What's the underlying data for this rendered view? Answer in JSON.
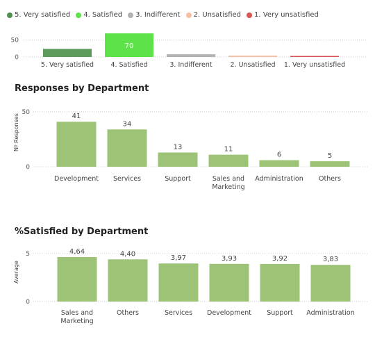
{
  "chart_data": [
    {
      "type": "bar",
      "title": "",
      "categories": [
        "5. Very satisfied",
        "4. Satisfied",
        "3. Indifferent",
        "2. Unsatisfied",
        "1. Very unsatisfied"
      ],
      "values": [
        24,
        70,
        8,
        4,
        2
      ],
      "colors": [
        "#5c9b5c",
        "#5de24a",
        "#b3b3b3",
        "#f4bfa4",
        "#d9534f"
      ],
      "data_labels": [
        "",
        "70",
        "",
        "",
        ""
      ],
      "yticks": [
        "50",
        "0"
      ],
      "ylim": [
        0,
        70
      ],
      "legend": {
        "position": "top-left",
        "items": [
          {
            "label": "5. Very satisfied",
            "color": "#4f8f4f"
          },
          {
            "label": "4. Satisfied",
            "color": "#5de24a"
          },
          {
            "label": "3. Indifferent",
            "color": "#b3b3b3"
          },
          {
            "label": "2. Unsatisfied",
            "color": "#f4bfa4"
          },
          {
            "label": "1. Very unsatisfied",
            "color": "#d9534f"
          }
        ]
      },
      "grid": true
    },
    {
      "type": "bar",
      "title": "Responses by Department",
      "ylabel": "Nº Responses",
      "categories": [
        [
          "Development"
        ],
        [
          "Services"
        ],
        [
          "Support"
        ],
        [
          "Sales and",
          "Marketing"
        ],
        [
          "Administration"
        ],
        [
          "Others"
        ]
      ],
      "values": [
        41,
        34,
        13,
        11,
        6,
        5
      ],
      "data_labels": [
        "41",
        "34",
        "13",
        "11",
        "6",
        "5"
      ],
      "yticks": [
        "50",
        "0"
      ],
      "ylim": [
        0,
        50
      ],
      "color": "#9dc476",
      "grid": true
    },
    {
      "type": "bar",
      "title": "%Satisfied by Department",
      "ylabel": "Average",
      "categories": [
        [
          "Sales and",
          "Marketing"
        ],
        [
          "Others"
        ],
        [
          "Services"
        ],
        [
          "Development"
        ],
        [
          "Support"
        ],
        [
          "Administration"
        ]
      ],
      "values": [
        4.64,
        4.4,
        3.97,
        3.93,
        3.92,
        3.83
      ],
      "data_labels": [
        "4,64",
        "4,40",
        "3,97",
        "3,93",
        "3,92",
        "3,83"
      ],
      "yticks": [
        "5",
        "0"
      ],
      "ylim": [
        0,
        5
      ],
      "color": "#9dc476",
      "grid": true
    }
  ]
}
